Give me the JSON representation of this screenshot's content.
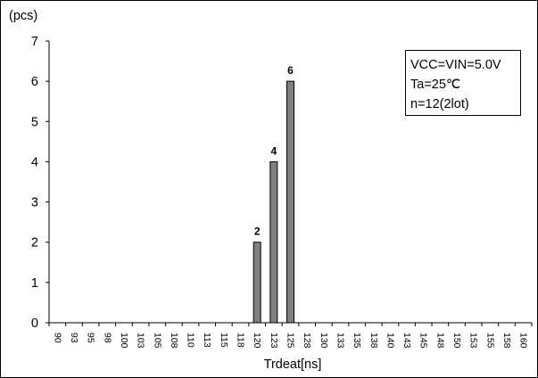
{
  "chart_data": {
    "type": "bar",
    "unit_label": "(pcs)",
    "xlabel": "Trdeat[ns]",
    "ylabel": "",
    "ylim": [
      0,
      7
    ],
    "yticks": [
      0,
      1,
      2,
      3,
      4,
      5,
      6,
      7
    ],
    "categories": [
      "90",
      "93",
      "95",
      "98",
      "100",
      "103",
      "105",
      "108",
      "110",
      "113",
      "115",
      "118",
      "120",
      "123",
      "125",
      "128",
      "130",
      "133",
      "135",
      "138",
      "140",
      "143",
      "145",
      "148",
      "150",
      "153",
      "155",
      "158",
      "160"
    ],
    "values": [
      0,
      0,
      0,
      0,
      0,
      0,
      0,
      0,
      0,
      0,
      0,
      0,
      2,
      4,
      6,
      0,
      0,
      0,
      0,
      0,
      0,
      0,
      0,
      0,
      0,
      0,
      0,
      0,
      0
    ],
    "data_labels": [
      "",
      "",
      "",
      "",
      "",
      "",
      "",
      "",
      "",
      "",
      "",
      "",
      "2",
      "4",
      "6",
      "",
      "",
      "",
      "",
      "",
      "",
      "",
      "",
      "",
      "",
      "",
      "",
      "",
      ""
    ],
    "bar_color": "#808080",
    "grid": false,
    "annotation_lines": [
      "VCC=VIN=5.0V",
      "Ta=25℃",
      "n=12(2lot)"
    ]
  }
}
